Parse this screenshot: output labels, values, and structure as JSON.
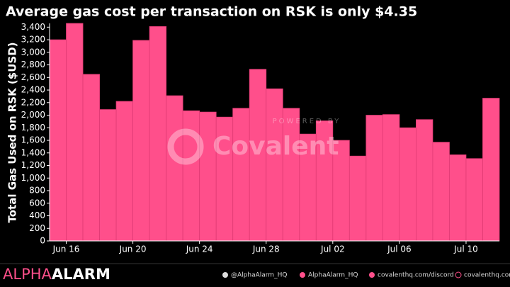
{
  "chart_data": {
    "type": "bar",
    "title": "Average gas cost per transaction on RSK is only $4.35",
    "ylabel": "Total Gas Used on RSK ($USD)",
    "categories": [
      null,
      "Jun 16",
      null,
      null,
      null,
      "Jun 20",
      null,
      null,
      null,
      "Jun 24",
      null,
      null,
      null,
      "Jun 28",
      null,
      null,
      null,
      "Jul 02",
      null,
      null,
      null,
      "Jul 06",
      null,
      null,
      null,
      "Jul 10",
      null
    ],
    "values": [
      3200,
      3460,
      2650,
      2090,
      2220,
      3190,
      3410,
      2310,
      2070,
      2050,
      1970,
      2110,
      2730,
      2420,
      2110,
      1700,
      1910,
      1600,
      1350,
      2000,
      2010,
      1800,
      1930,
      1570,
      1370,
      1310,
      2270
    ],
    "color": "#ff4f8b",
    "ylim": [
      0,
      3460
    ],
    "yticks": [
      0,
      200,
      400,
      600,
      800,
      {
        "value": 1000,
        "label": "1,000"
      },
      {
        "value": 1200,
        "label": "1,200"
      },
      {
        "value": 1400,
        "label": "1,400"
      },
      {
        "value": 1600,
        "label": "1,600"
      },
      {
        "value": 1800,
        "label": "1,800"
      },
      {
        "value": 2000,
        "label": "2,000"
      },
      {
        "value": 2200,
        "label": "2,200"
      },
      {
        "value": 2400,
        "label": "2,400"
      },
      {
        "value": 2600,
        "label": "2,600"
      },
      {
        "value": 2800,
        "label": "2,800"
      },
      {
        "value": 3000,
        "label": "3,000"
      },
      {
        "value": 3200,
        "label": "3,200"
      },
      {
        "value": 3400,
        "label": "3,400"
      }
    ],
    "grid": false
  },
  "watermark": {
    "top": "POWERED BY",
    "brand": "Covalent"
  },
  "footer": {
    "logo_a": "ALPHA",
    "logo_b": "ALARM",
    "twitter": "@AlphaAlarm_HQ",
    "telegram": "AlphaAlarm_HQ",
    "discord": "covalenthq.com/discord",
    "web": "covalenthq.com"
  }
}
